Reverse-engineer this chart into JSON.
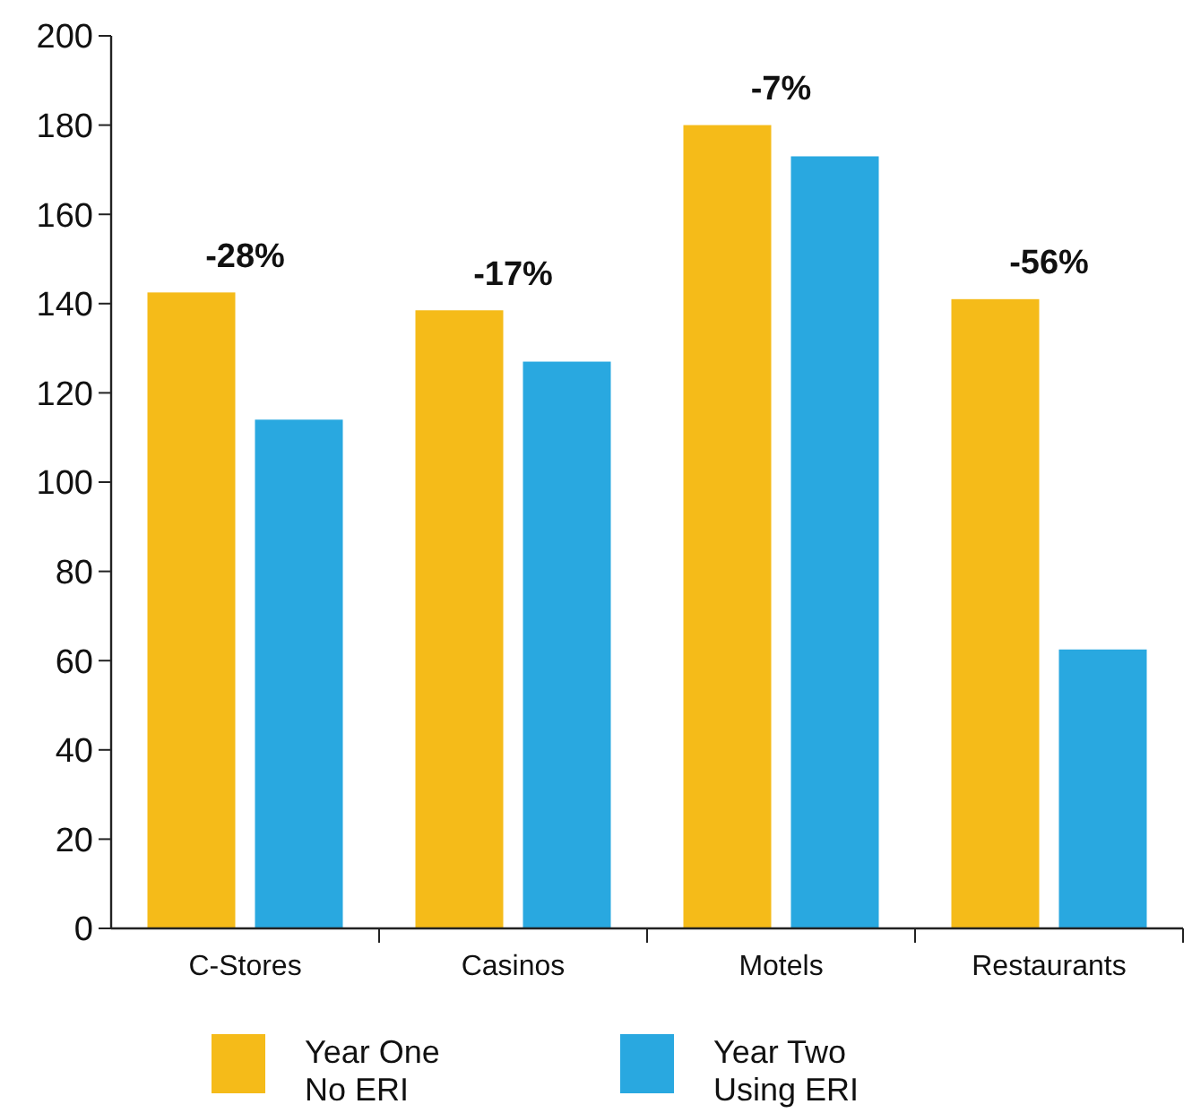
{
  "chart_data": {
    "type": "bar",
    "categories": [
      "C-Stores",
      "Casinos",
      "Motels",
      "Restaurants"
    ],
    "series": [
      {
        "name": "Year One\nNo ERI",
        "color": "#f5bb19",
        "values": [
          142.5,
          138.5,
          180,
          141
        ]
      },
      {
        "name": "Year Two\nUsing ERI",
        "color": "#29a8e0",
        "values": [
          114,
          127,
          173,
          62.5
        ]
      }
    ],
    "ylim": [
      0,
      200
    ],
    "yticks": [
      0,
      20,
      40,
      60,
      80,
      100,
      120,
      140,
      160,
      180,
      200
    ],
    "grid": false,
    "legend": "bottom",
    "annotations": [
      "-28%",
      "-17%",
      "-7%",
      "-56%"
    ]
  }
}
